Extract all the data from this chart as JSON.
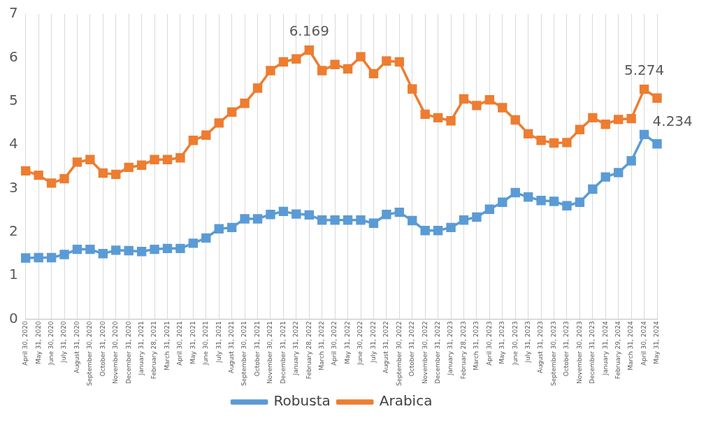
{
  "chart_data": {
    "type": "line",
    "categories": [
      "April 30, 2020",
      "May 31, 2020",
      "June 30, 2020",
      "July 31, 2020",
      "August 31, 2020",
      "September 30, 2020",
      "October 31, 2020",
      "November 30, 2020",
      "December 31, 2020",
      "January 31, 2021",
      "February 28, 2021",
      "March 31, 2021",
      "April 30, 2021",
      "May 31, 2021",
      "June 30, 2021",
      "July 31, 2021",
      "August 31, 2021",
      "September 30, 2021",
      "October 31, 2021",
      "November 30, 2021",
      "December 31, 2021",
      "January 31, 2022",
      "February 28, 2022",
      "March 31, 2022",
      "April 30, 2022",
      "May 31, 2022",
      "June 30, 2022",
      "July 31, 2022",
      "August 31, 2022",
      "September 30, 2022",
      "October 31, 2022",
      "November 30, 2022",
      "December 31, 2022",
      "January 31, 2023",
      "February 28, 2023",
      "March 31, 2023",
      "April 30, 2023",
      "May 31, 2023",
      "June 30, 2023",
      "July 31, 2023",
      "August 31, 2023",
      "September 30, 2023",
      "October 31, 2023",
      "November 30, 2023",
      "December 31, 2023",
      "January 31, 2024",
      "February 29, 2024",
      "March 31, 2024",
      "April 30, 2024",
      "May 31, 2024"
    ],
    "series": [
      {
        "name": "Robusta",
        "color": "#5b9bd5",
        "values": [
          1.4,
          1.41,
          1.41,
          1.48,
          1.6,
          1.6,
          1.5,
          1.58,
          1.57,
          1.55,
          1.6,
          1.62,
          1.62,
          1.74,
          1.86,
          2.07,
          2.1,
          2.3,
          2.3,
          2.4,
          2.47,
          2.41,
          2.39,
          2.27,
          2.27,
          2.27,
          2.27,
          2.2,
          2.4,
          2.45,
          2.26,
          2.03,
          2.03,
          2.1,
          2.27,
          2.34,
          2.52,
          2.68,
          2.9,
          2.8,
          2.72,
          2.7,
          2.6,
          2.68,
          2.98,
          3.26,
          3.36,
          3.63,
          4.234,
          4.02
        ],
        "value_labels": [
          null,
          null,
          null,
          null,
          null,
          null,
          null,
          null,
          null,
          null,
          null,
          null,
          null,
          null,
          null,
          null,
          null,
          null,
          null,
          null,
          null,
          null,
          null,
          null,
          null,
          null,
          null,
          null,
          null,
          null,
          null,
          null,
          null,
          null,
          null,
          null,
          null,
          null,
          null,
          null,
          null,
          null,
          null,
          null,
          null,
          null,
          null,
          null,
          "4.234",
          null
        ]
      },
      {
        "name": "Arabica",
        "color": "#ed7d31",
        "values": [
          3.4,
          3.3,
          3.12,
          3.22,
          3.6,
          3.66,
          3.35,
          3.32,
          3.48,
          3.53,
          3.66,
          3.66,
          3.7,
          4.1,
          4.22,
          4.5,
          4.75,
          4.95,
          5.3,
          5.7,
          5.9,
          5.97,
          6.169,
          5.7,
          5.84,
          5.74,
          6.02,
          5.63,
          5.92,
          5.9,
          5.28,
          4.7,
          4.62,
          4.55,
          5.05,
          4.9,
          5.03,
          4.85,
          4.57,
          4.25,
          4.1,
          4.04,
          4.05,
          4.35,
          4.62,
          4.47,
          4.58,
          4.6,
          5.274,
          5.07
        ],
        "value_labels": [
          null,
          null,
          null,
          null,
          null,
          null,
          null,
          null,
          null,
          null,
          null,
          null,
          null,
          null,
          null,
          null,
          null,
          null,
          null,
          null,
          null,
          null,
          "6.169",
          null,
          null,
          null,
          null,
          null,
          null,
          null,
          null,
          null,
          null,
          null,
          null,
          null,
          null,
          null,
          null,
          null,
          null,
          null,
          null,
          null,
          null,
          null,
          null,
          null,
          "5.274",
          null
        ]
      }
    ],
    "ylim": [
      0,
      7
    ],
    "yticks": [
      0,
      1,
      2,
      3,
      4,
      5,
      6,
      7
    ],
    "grid": "x",
    "legend": "bottom",
    "marker": "square",
    "line_style": "solid"
  }
}
